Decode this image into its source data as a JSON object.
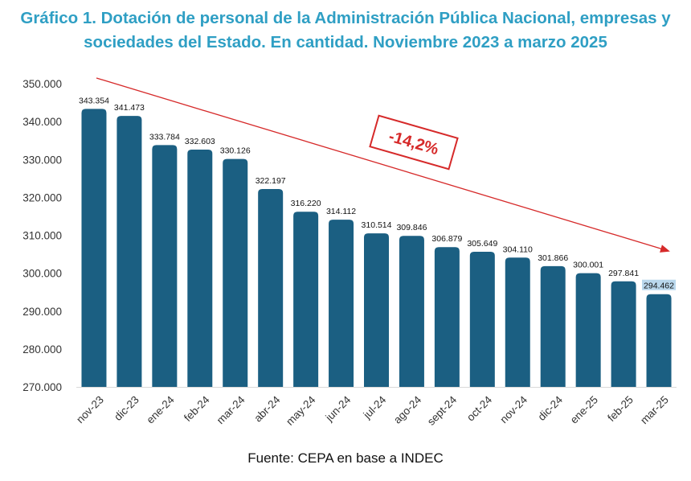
{
  "title": {
    "line1": "Gráfico 1. Dotación de personal de la Administración Pública Nacional, empresas y",
    "line2": "sociedades del Estado. En cantidad. Noviembre 2023 a marzo 2025"
  },
  "source": "Fuente: CEPA en base a INDEC",
  "colors": {
    "title": "#2f9fc4",
    "bar": "#1b5f82",
    "trend": "#d62a2a"
  },
  "chart_data": {
    "type": "bar",
    "categories": [
      "nov-23",
      "dic-23",
      "ene-24",
      "feb-24",
      "mar-24",
      "abr-24",
      "may-24",
      "jun-24",
      "jul-24",
      "ago-24",
      "sept-24",
      "oct-24",
      "nov-24",
      "dic-24",
      "ene-25",
      "feb-25",
      "mar-25"
    ],
    "values": [
      343354,
      341473,
      333784,
      332603,
      330126,
      322197,
      316220,
      314112,
      310514,
      309846,
      306879,
      305649,
      304110,
      301866,
      300001,
      297841,
      294462
    ],
    "value_labels": [
      "343.354",
      "341.473",
      "333.784",
      "332.603",
      "330.126",
      "322.197",
      "316.220",
      "314.112",
      "310.514",
      "309.846",
      "306.879",
      "305.649",
      "304.110",
      "301.866",
      "300.001",
      "297.841",
      "294.462"
    ],
    "ylim": [
      270000,
      350000
    ],
    "yticks": [
      270000,
      280000,
      290000,
      300000,
      310000,
      320000,
      330000,
      340000,
      350000
    ],
    "ytick_labels": [
      "270.000",
      "280.000",
      "290.000",
      "300.000",
      "310.000",
      "320.000",
      "330.000",
      "340.000",
      "350.000"
    ],
    "grid": false,
    "annotation": {
      "text": "-14,2%",
      "type": "trend-arrow"
    }
  }
}
